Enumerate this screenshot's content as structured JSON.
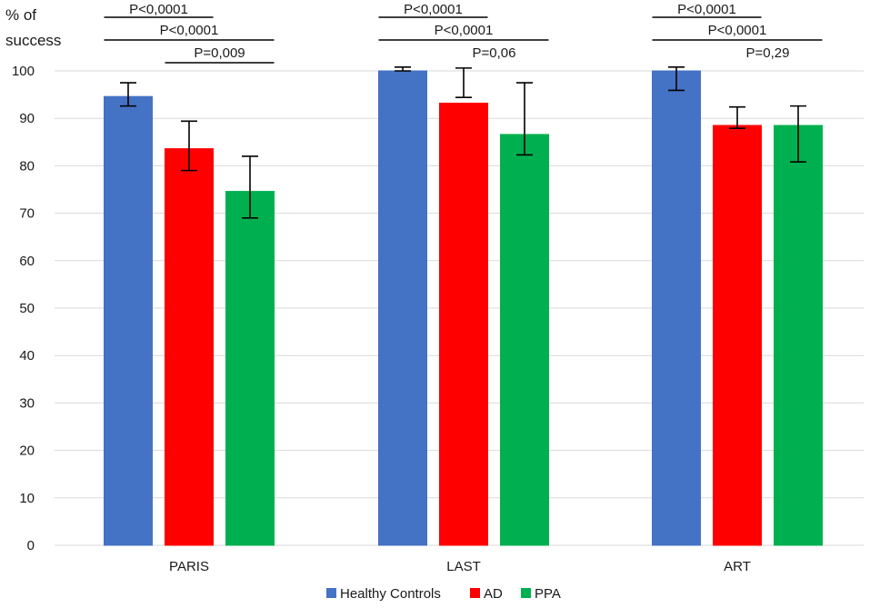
{
  "chart_data": {
    "type": "bar",
    "title": "",
    "ylabel_line1": "% of",
    "ylabel_line2": "success",
    "xlabel": "",
    "ylim": [
      0,
      100
    ],
    "yticks": [
      0,
      10,
      20,
      30,
      40,
      50,
      60,
      70,
      80,
      90,
      100
    ],
    "categories": [
      "PARIS",
      "LAST",
      "ART"
    ],
    "series": [
      {
        "name": "Healthy Controls",
        "color": "#4472C4",
        "values": [
          94.6,
          100,
          100
        ],
        "err_low": [
          92.6,
          100,
          95.9
        ],
        "err_high": [
          97.5,
          100.8,
          100.8
        ]
      },
      {
        "name": "AD",
        "color": "#FF0000",
        "values": [
          83.6,
          93.2,
          88.5
        ],
        "err_low": [
          79.0,
          94.4,
          87.9
        ],
        "err_high": [
          89.4,
          100.6,
          92.4
        ]
      },
      {
        "name": "PPA",
        "color": "#00B050",
        "values": [
          74.6,
          86.6,
          88.5
        ],
        "err_low": [
          69.0,
          82.3,
          80.8
        ],
        "err_high": [
          82.0,
          97.5,
          92.6
        ]
      }
    ],
    "legend_position": "bottom",
    "grid": true,
    "annotations": [
      {
        "text": "P<0,0001",
        "category": 0,
        "from": 0,
        "to": 1,
        "underline": true
      },
      {
        "text": "P<0,0001",
        "category": 0,
        "from": 0,
        "to": 2,
        "underline": true
      },
      {
        "text": "P=0,009",
        "category": 0,
        "from": 1,
        "to": 2,
        "underline": true
      },
      {
        "text": "P<0,0001",
        "category": 1,
        "from": 0,
        "to": 1,
        "underline": true
      },
      {
        "text": "P<0,0001",
        "category": 1,
        "from": 0,
        "to": 2,
        "underline": true
      },
      {
        "text": "P=0,06",
        "category": 1,
        "from": 1,
        "to": 2,
        "underline": false
      },
      {
        "text": "P<0,0001",
        "category": 2,
        "from": 0,
        "to": 1,
        "underline": true
      },
      {
        "text": "P<0,0001",
        "category": 2,
        "from": 0,
        "to": 2,
        "underline": true
      },
      {
        "text": "P=0,29",
        "category": 2,
        "from": 1,
        "to": 2,
        "underline": false
      }
    ]
  }
}
